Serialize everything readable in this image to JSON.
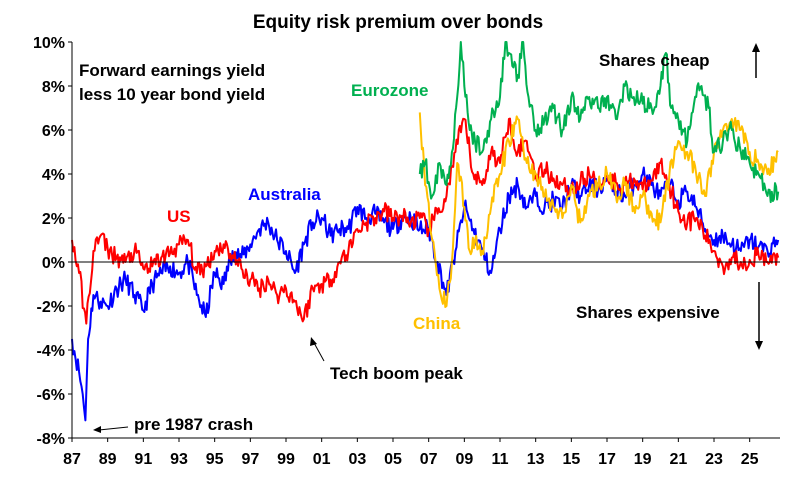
{
  "chart_data": {
    "type": "line",
    "title": "Equity risk premium over bonds",
    "subtitle_lines": [
      "Forward earnings yield",
      "less 10 year bond yield"
    ],
    "xlabel": "",
    "ylabel": "",
    "x_tick_labels": [
      "87",
      "89",
      "91",
      "93",
      "95",
      "97",
      "99",
      "01",
      "03",
      "05",
      "07",
      "09",
      "11",
      "13",
      "15",
      "17",
      "19",
      "21",
      "23",
      "25"
    ],
    "y_tick_labels": [
      "-8%",
      "-6%",
      "-4%",
      "-2%",
      "0%",
      "2%",
      "4%",
      "6%",
      "8%",
      "10%"
    ],
    "ylim": [
      -8,
      10
    ],
    "xlim": [
      1987,
      2026.7
    ],
    "grid": false,
    "legend": "inline labels",
    "series": [
      {
        "name": "US",
        "color": "#ff0000",
        "x": [
          1987,
          1987.4,
          1987.8,
          1988.2,
          1988.6,
          1989,
          1989.5,
          1990,
          1990.5,
          1991,
          1991.5,
          1992,
          1992.5,
          1993,
          1993.5,
          1994,
          1994.5,
          1995,
          1995.5,
          1996,
          1996.5,
          1997,
          1997.5,
          1998,
          1998.5,
          1999,
          1999.5,
          2000,
          2000.5,
          2001,
          2001.5,
          2002,
          2002.5,
          2003,
          2003.5,
          2004,
          2004.5,
          2005,
          2005.5,
          2006,
          2006.5,
          2007,
          2007.5,
          2008,
          2008.5,
          2009,
          2009.5,
          2010,
          2010.5,
          2011,
          2011.5,
          2012,
          2012.5,
          2013,
          2013.5,
          2014,
          2014.5,
          2015,
          2015.5,
          2016,
          2016.5,
          2017,
          2017.5,
          2018,
          2018.5,
          2019,
          2019.5,
          2020,
          2020.5,
          2021,
          2021.5,
          2022,
          2022.5,
          2023,
          2023.5,
          2024,
          2024.5,
          2025,
          2025.5,
          2026,
          2026.6
        ],
        "y": [
          1.0,
          -0.5,
          -2.8,
          0.5,
          1.2,
          0.6,
          0.2,
          0.0,
          0.5,
          -0.3,
          -0.2,
          0.2,
          0.4,
          0.8,
          1.0,
          -0.5,
          -0.2,
          0.5,
          0.8,
          0.3,
          -0.3,
          -0.8,
          -1.2,
          -0.8,
          -1.5,
          -1.2,
          -1.8,
          -2.6,
          -1.2,
          -1.0,
          -0.8,
          0.0,
          0.5,
          1.5,
          1.8,
          2.0,
          2.3,
          2.0,
          2.1,
          1.8,
          2.0,
          1.5,
          2.2,
          3.0,
          5.0,
          6.5,
          4.0,
          3.5,
          5.0,
          4.5,
          6.5,
          5.0,
          5.5,
          4.0,
          4.2,
          3.8,
          3.5,
          3.3,
          3.6,
          4.0,
          3.5,
          4.0,
          3.6,
          3.5,
          3.8,
          3.3,
          3.7,
          4.5,
          3.5,
          2.3,
          1.8,
          2.0,
          1.2,
          0.5,
          -0.2,
          0.2,
          0.0,
          0.1,
          0.3,
          0.0,
          0.2
        ]
      },
      {
        "name": "Australia",
        "color": "#0000ff",
        "x": [
          1987,
          1987.4,
          1987.6,
          1987.75,
          1987.9,
          1988.2,
          1988.6,
          1989,
          1989.5,
          1990,
          1990.5,
          1991,
          1991.5,
          1992,
          1992.5,
          1993,
          1993.5,
          1994,
          1994.5,
          1995,
          1995.5,
          1996,
          1996.5,
          1997,
          1997.5,
          1998,
          1998.5,
          1999,
          1999.5,
          2000,
          2000.5,
          2001,
          2001.5,
          2002,
          2002.5,
          2003,
          2003.5,
          2004,
          2004.5,
          2005,
          2005.5,
          2006,
          2006.5,
          2007,
          2007.5,
          2008,
          2008.5,
          2009,
          2009.5,
          2010,
          2010.5,
          2011,
          2011.5,
          2012,
          2012.5,
          2013,
          2013.5,
          2014,
          2014.5,
          2015,
          2015.5,
          2016,
          2016.5,
          2017,
          2017.5,
          2018,
          2018.5,
          2019,
          2019.5,
          2020,
          2020.5,
          2021,
          2021.5,
          2022,
          2022.5,
          2023,
          2023.5,
          2024,
          2024.5,
          2025,
          2025.5,
          2026,
          2026.6
        ],
        "y": [
          -3.5,
          -5.0,
          -6.0,
          -7.2,
          -3.5,
          -1.5,
          -1.8,
          -2.0,
          -1.2,
          -0.8,
          -1.5,
          -2.2,
          -1.0,
          -0.5,
          -0.2,
          -0.5,
          0.0,
          -1.5,
          -2.5,
          -0.5,
          -1.0,
          0.5,
          0.2,
          0.8,
          1.5,
          1.8,
          1.0,
          0.5,
          -0.5,
          0.8,
          1.8,
          2.0,
          1.2,
          1.5,
          1.5,
          2.5,
          2.0,
          2.2,
          1.8,
          1.5,
          2.0,
          2.0,
          1.5,
          1.5,
          0.0,
          -1.5,
          0.5,
          2.5,
          1.5,
          0.5,
          -0.5,
          1.5,
          3.0,
          3.5,
          2.5,
          3.0,
          2.5,
          2.8,
          2.5,
          3.5,
          3.0,
          3.5,
          3.3,
          3.8,
          3.2,
          3.0,
          3.5,
          4.0,
          3.5,
          3.0,
          3.5,
          2.8,
          3.2,
          2.5,
          1.5,
          1.0,
          1.2,
          0.8,
          0.5,
          1.0,
          0.7,
          0.5,
          1.0
        ]
      },
      {
        "name": "China",
        "color": "#ffc000",
        "x": [
          2006.5,
          2006.8,
          2007.2,
          2007.6,
          2008,
          2008.3,
          2008.6,
          2009,
          2009.3,
          2009.6,
          2010,
          2010.5,
          2011,
          2011.5,
          2012,
          2012.5,
          2013,
          2013.5,
          2014,
          2014.5,
          2015,
          2015.5,
          2016,
          2016.5,
          2017,
          2017.5,
          2018,
          2018.5,
          2019,
          2019.5,
          2020,
          2020.5,
          2021,
          2021.5,
          2022,
          2022.5,
          2023,
          2023.5,
          2024,
          2024.5,
          2025,
          2025.5,
          2026,
          2026.6
        ],
        "y": [
          6.8,
          3.5,
          1.0,
          -1.2,
          -2.0,
          0.0,
          4.5,
          2.5,
          0.5,
          1.0,
          0.5,
          2.5,
          4.0,
          5.5,
          6.5,
          4.5,
          4.0,
          3.0,
          2.5,
          2.0,
          3.5,
          1.8,
          3.0,
          3.5,
          4.0,
          3.0,
          3.5,
          2.5,
          3.0,
          2.2,
          1.8,
          4.0,
          5.5,
          5.0,
          4.0,
          3.0,
          5.0,
          6.0,
          6.5,
          6.0,
          5.0,
          4.5,
          4.0,
          5.0
        ]
      },
      {
        "name": "Eurozone",
        "color": "#00b050",
        "x": [
          2006.5,
          2006.8,
          2007.2,
          2007.6,
          2008,
          2008.3,
          2008.6,
          2008.8,
          2009,
          2009.3,
          2009.6,
          2010,
          2010.5,
          2011,
          2011.3,
          2011.5,
          2012,
          2012.3,
          2012.6,
          2013,
          2013.5,
          2014,
          2014.5,
          2015,
          2015.5,
          2016,
          2016.5,
          2017,
          2017.5,
          2018,
          2018.5,
          2019,
          2019.5,
          2020,
          2020.3,
          2020.6,
          2021,
          2021.5,
          2022,
          2022.3,
          2022.7,
          2023,
          2023.5,
          2024,
          2024.5,
          2025,
          2025.5,
          2026,
          2026.6
        ],
        "y": [
          4.0,
          4.5,
          3.0,
          4.5,
          3.5,
          5.0,
          7.5,
          10.0,
          8.0,
          6.0,
          5.5,
          5.0,
          6.5,
          7.5,
          10.0,
          9.5,
          8.5,
          10.0,
          7.5,
          6.0,
          6.5,
          7.0,
          6.0,
          7.5,
          6.5,
          7.5,
          7.0,
          7.5,
          6.5,
          8.0,
          7.5,
          7.2,
          7.0,
          8.0,
          9.5,
          7.0,
          6.5,
          5.5,
          7.5,
          8.0,
          7.0,
          5.0,
          5.5,
          6.0,
          5.0,
          4.5,
          4.0,
          3.0,
          3.2
        ]
      }
    ],
    "annotations": [
      {
        "text": "US",
        "color": "#ff0000"
      },
      {
        "text": "Australia",
        "color": "#0000ff"
      },
      {
        "text": "China",
        "color": "#ffc000"
      },
      {
        "text": "Eurozone",
        "color": "#00b050"
      },
      {
        "text": "Tech boom peak",
        "color": "#000000"
      },
      {
        "text": "pre 1987 crash",
        "color": "#000000"
      },
      {
        "text": "Shares cheap",
        "color": "#000000"
      },
      {
        "text": "Shares expensive",
        "color": "#000000"
      }
    ]
  }
}
